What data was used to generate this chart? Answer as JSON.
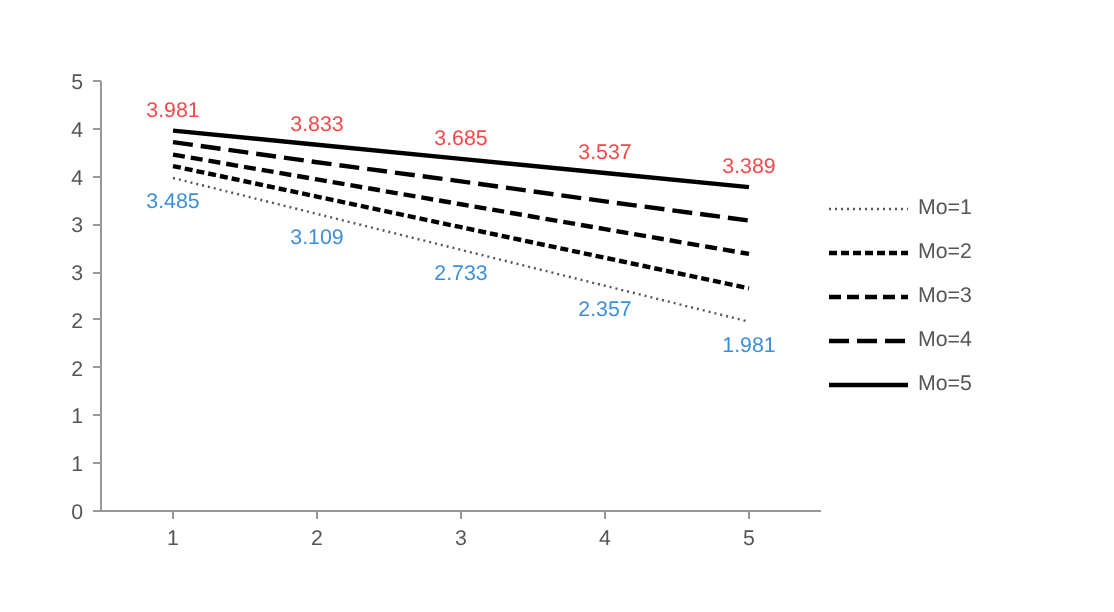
{
  "chart_data": {
    "type": "line",
    "categories": [
      "1",
      "2",
      "3",
      "4",
      "5"
    ],
    "series": [
      {
        "name": "Mo=1",
        "color": "#555555",
        "line_style": "dotted",
        "values": [
          3.485,
          3.109,
          2.733,
          2.357,
          1.981
        ],
        "value_labels": [
          "3.485",
          "3.109",
          "2.733",
          "2.357",
          "1.981"
        ]
      },
      {
        "name": "Mo=2",
        "color": "#000000",
        "line_style": "dashed",
        "values": [
          3.61,
          3.29,
          2.97,
          2.65,
          2.33
        ]
      },
      {
        "name": "Mo=3",
        "color": "#000000",
        "line_style": "dashed",
        "values": [
          3.73,
          3.47,
          3.21,
          2.95,
          2.69
        ]
      },
      {
        "name": "Mo=4",
        "color": "#000000",
        "line_style": "dashed",
        "values": [
          3.86,
          3.65,
          3.45,
          3.24,
          3.04
        ]
      },
      {
        "name": "Mo=5",
        "color": "#000000",
        "line_style": "solid",
        "values": [
          3.981,
          3.833,
          3.685,
          3.537,
          3.389
        ],
        "value_labels": [
          "3.981",
          "3.833",
          "3.685",
          "3.537",
          "3.389"
        ]
      }
    ],
    "ylim": [
      0,
      4.5
    ],
    "yticks": [
      0,
      {
        "value": 0.5,
        "label": "1"
      },
      1,
      {
        "value": 1.5,
        "label": "2"
      },
      2,
      {
        "value": 2.5,
        "label": "3"
      },
      3,
      {
        "value": 3.5,
        "label": "4"
      },
      4,
      {
        "value": 4.5,
        "label": "5"
      }
    ],
    "grid": false,
    "legend": "right",
    "marker": "none"
  }
}
